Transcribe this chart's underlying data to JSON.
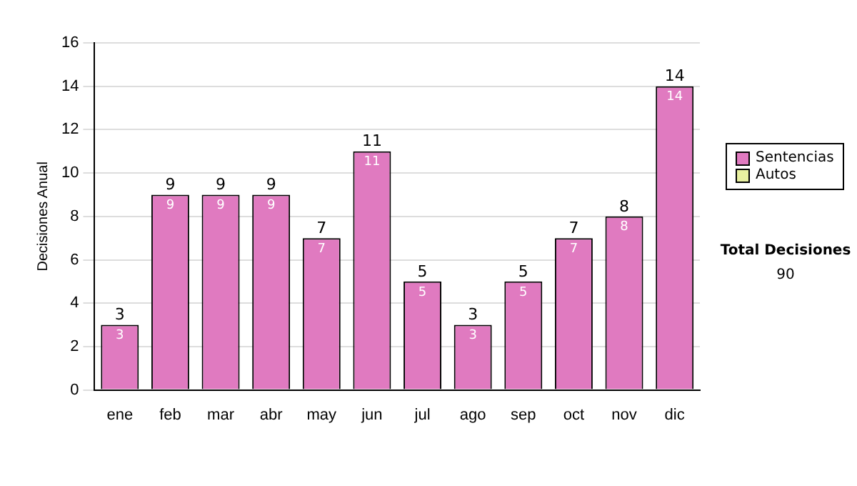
{
  "chart_data": {
    "type": "bar",
    "ylabel": "Decisiones Anual",
    "categories": [
      "ene",
      "feb",
      "mar",
      "abr",
      "may",
      "jun",
      "jul",
      "ago",
      "sep",
      "oct",
      "nov",
      "dic"
    ],
    "series": [
      {
        "name": "Sentencias",
        "color": "#e07ac0",
        "values": [
          3,
          9,
          9,
          9,
          7,
          11,
          5,
          3,
          5,
          7,
          8,
          14
        ],
        "value_labels": [
          "3",
          "9",
          "9",
          "9",
          "7",
          "11",
          "5",
          "3",
          "5",
          "7",
          "8",
          "14"
        ]
      },
      {
        "name": "Autos",
        "color": "#e8f0a0",
        "values": [
          0,
          0,
          0,
          0,
          0,
          0,
          0,
          0,
          0,
          0,
          0,
          0
        ]
      }
    ],
    "stacked": true,
    "totals": [
      "3",
      "9",
      "9",
      "9",
      "7",
      "11",
      "5",
      "3",
      "5",
      "7",
      "8",
      "14"
    ],
    "ylim": [
      0,
      16
    ],
    "yticks": [
      0,
      2,
      4,
      6,
      8,
      10,
      12,
      14,
      16
    ],
    "grid": "y",
    "legend": "right",
    "annotations": [
      "Total Decisiones",
      "90"
    ]
  }
}
